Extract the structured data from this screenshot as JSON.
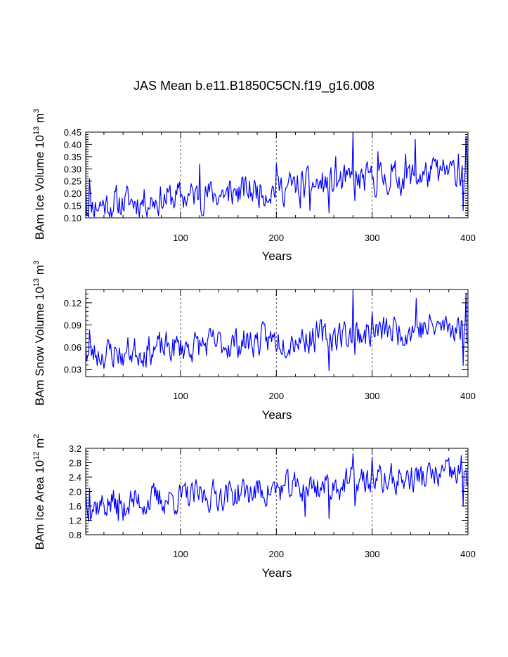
{
  "title": "JAS Mean b.e11.B1850C5CN.f19_g16.008",
  "chart_data": [
    {
      "type": "line",
      "ylabel_main": "BAm Ice Volume 10",
      "ylabel_sup": "13",
      "ylabel_tail": " m",
      "ylabel_tail_sup": "3",
      "xlabel": "Years",
      "xlim": [
        1,
        400
      ],
      "ylim": [
        0.1,
        0.45
      ],
      "xticks": [
        100,
        200,
        300,
        400
      ],
      "yticks": [
        0.1,
        0.15,
        0.2,
        0.25,
        0.3,
        0.35,
        0.4,
        0.45
      ],
      "ytick_labels": [
        "0.10",
        "0.15",
        "0.20",
        "0.25",
        "0.30",
        "0.35",
        "0.40",
        "0.45"
      ],
      "color": "#0000ff",
      "base": 0.15,
      "trend": 0.14,
      "amp": 0.055,
      "seed": 11,
      "keypoints": [
        [
          1,
          0.23
        ],
        [
          5,
          0.26
        ],
        [
          30,
          0.13
        ],
        [
          35,
          0.12
        ],
        [
          120,
          0.32
        ],
        [
          150,
          0.17
        ],
        [
          200,
          0.32
        ],
        [
          225,
          0.14
        ],
        [
          235,
          0.13
        ],
        [
          255,
          0.12
        ],
        [
          262,
          0.35
        ],
        [
          280,
          0.45
        ],
        [
          282,
          0.17
        ],
        [
          306,
          0.37
        ],
        [
          320,
          0.32
        ],
        [
          335,
          0.36
        ],
        [
          345,
          0.42
        ],
        [
          366,
          0.34
        ],
        [
          390,
          0.36
        ],
        [
          395,
          0.13
        ],
        [
          398,
          0.43
        ],
        [
          400,
          0.22
        ]
      ]
    },
    {
      "type": "line",
      "ylabel_main": "BAm Snow Volume 10",
      "ylabel_sup": "13",
      "ylabel_tail": " m",
      "ylabel_tail_sup": "3",
      "xlabel": "Years",
      "xlim": [
        1,
        400
      ],
      "ylim": [
        0.02,
        0.138
      ],
      "xticks": [
        100,
        200,
        300,
        400
      ],
      "yticks": [
        0.03,
        0.06,
        0.09,
        0.12
      ],
      "ytick_labels": [
        "0.03",
        "0.06",
        "0.09",
        "0.12"
      ],
      "color": "#0000ff",
      "base": 0.05,
      "trend": 0.04,
      "amp": 0.018,
      "seed": 23,
      "keypoints": [
        [
          1,
          0.06
        ],
        [
          5,
          0.083
        ],
        [
          30,
          0.033
        ],
        [
          40,
          0.035
        ],
        [
          255,
          0.028
        ],
        [
          280,
          0.136
        ],
        [
          282,
          0.05
        ],
        [
          300,
          0.107
        ],
        [
          346,
          0.126
        ],
        [
          390,
          0.1
        ],
        [
          395,
          0.035
        ],
        [
          398,
          0.133
        ],
        [
          400,
          0.065
        ]
      ]
    },
    {
      "type": "line",
      "ylabel_main": "BAm Ice Area 10",
      "ylabel_sup": "12",
      "ylabel_tail": " m",
      "ylabel_tail_sup": "2",
      "xlabel": "Years",
      "xlim": [
        1,
        400
      ],
      "ylim": [
        0.8,
        3.2
      ],
      "xticks": [
        100,
        200,
        300,
        400
      ],
      "yticks": [
        0.8,
        1.2,
        1.6,
        2.0,
        2.4,
        2.8,
        3.2
      ],
      "ytick_labels": [
        "0.8",
        "1.2",
        "1.6",
        "2.0",
        "2.4",
        "2.8",
        "3.2"
      ],
      "color": "#0000ff",
      "base": 1.6,
      "trend": 0.9,
      "amp": 0.36,
      "seed": 37,
      "keypoints": [
        [
          1,
          2.0
        ],
        [
          5,
          2.1
        ],
        [
          35,
          1.2
        ],
        [
          40,
          1.2
        ],
        [
          230,
          1.3
        ],
        [
          255,
          1.25
        ],
        [
          280,
          3.05
        ],
        [
          282,
          1.6
        ],
        [
          300,
          2.95
        ],
        [
          393,
          3.0
        ],
        [
          395,
          1.6
        ],
        [
          398,
          2.6
        ],
        [
          400,
          2.25
        ]
      ]
    }
  ]
}
